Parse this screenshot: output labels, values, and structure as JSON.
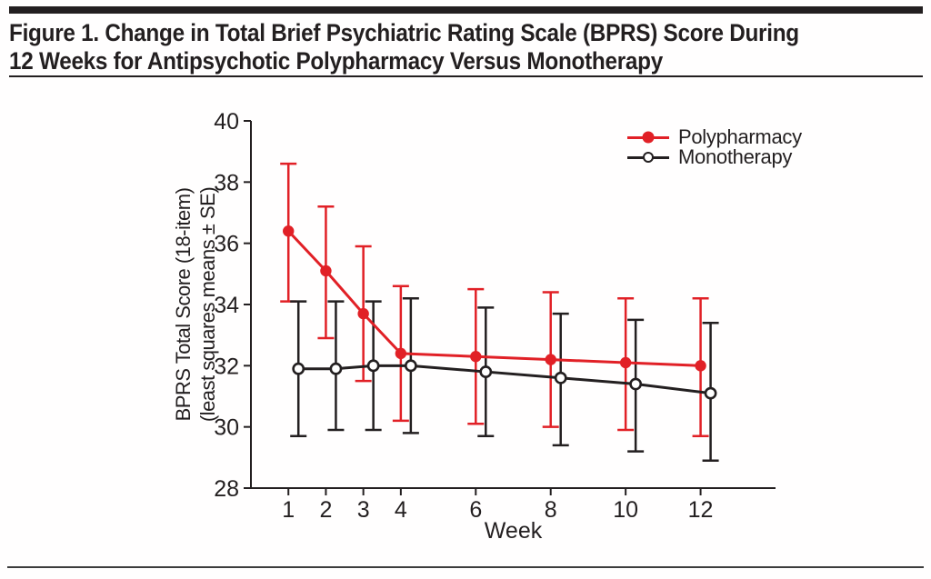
{
  "figure": {
    "title_line1": "Figure 1. Change in Total Brief Psychiatric Rating Scale (BPRS) Score During",
    "title_line2": "12 Weeks for Antipsychotic Polypharmacy Versus Monotherapy"
  },
  "colors": {
    "ink": "#231f20",
    "polypharmacy_red": "#e12026",
    "monotherapy_black": "#231f20"
  },
  "chart_data": {
    "type": "line",
    "title": "Change in Total BPRS Score During 12 Weeks",
    "xlabel": "Week",
    "ylabel_line1": "BPRS Total Score (18-item)",
    "ylabel_line2": "(least squares means ± SE)",
    "x": [
      1,
      2,
      3,
      4,
      6,
      8,
      10,
      12
    ],
    "xticks": [
      1,
      2,
      3,
      4,
      6,
      8,
      10,
      12
    ],
    "xlim": [
      0,
      14
    ],
    "yticks": [
      28,
      30,
      32,
      34,
      36,
      38,
      40
    ],
    "ylim": [
      28,
      40
    ],
    "grid": false,
    "legend_position": "top-right",
    "error_bars": "± SE",
    "series": [
      {
        "name": "Polypharmacy",
        "color": "#e12026",
        "marker": "filled-circle",
        "means": [
          36.4,
          35.1,
          33.7,
          32.4,
          32.3,
          32.2,
          32.1,
          32.0
        ],
        "upper": [
          38.6,
          37.2,
          35.9,
          34.6,
          34.5,
          34.4,
          34.2,
          34.2
        ],
        "lower": [
          34.1,
          32.9,
          31.5,
          30.2,
          30.1,
          30.0,
          29.9,
          29.7
        ]
      },
      {
        "name": "Monotherapy",
        "color": "#231f20",
        "marker": "open-circle",
        "means": [
          31.9,
          31.9,
          32.0,
          32.0,
          31.8,
          31.6,
          31.4,
          31.1
        ],
        "upper": [
          34.1,
          34.1,
          34.1,
          34.2,
          33.9,
          33.7,
          33.5,
          33.4
        ],
        "lower": [
          29.7,
          29.9,
          29.9,
          29.8,
          29.7,
          29.4,
          29.2,
          28.9
        ]
      }
    ]
  }
}
